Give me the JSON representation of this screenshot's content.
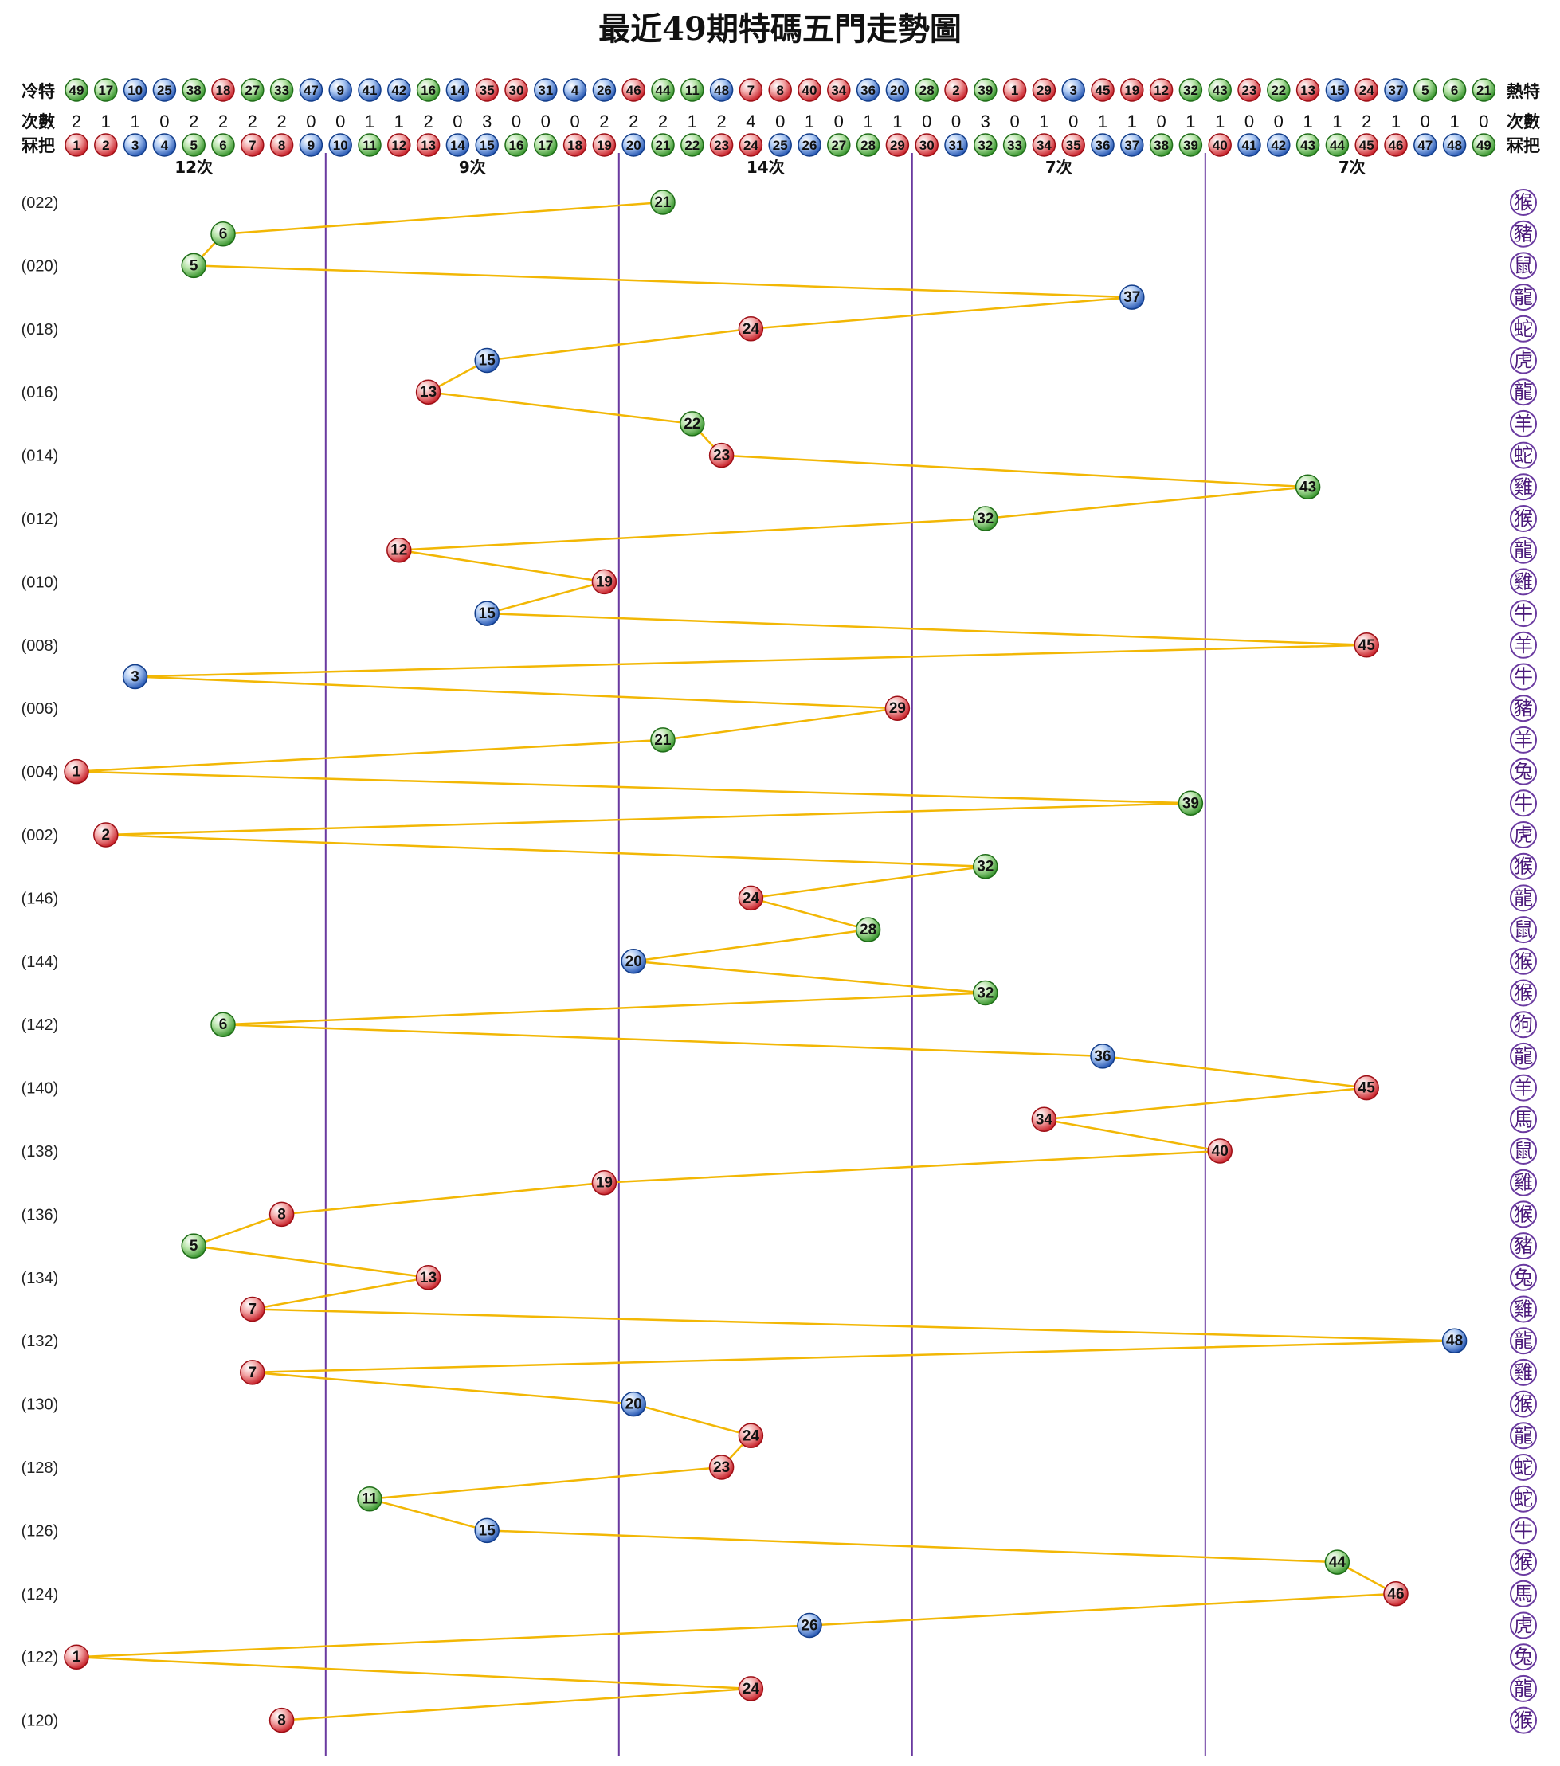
{
  "chart_data": {
    "type": "line",
    "title": "最近49期特碼五門走勢圖",
    "header": {
      "cold_label": "冷特",
      "hot_label": "熱特",
      "count_label": "次數",
      "group_label": "冧把"
    },
    "hot_cold_order": [
      49,
      17,
      10,
      25,
      38,
      18,
      27,
      33,
      47,
      9,
      41,
      42,
      16,
      14,
      35,
      30,
      31,
      4,
      26,
      46,
      44,
      11,
      48,
      7,
      8,
      40,
      34,
      36,
      20,
      28,
      2,
      39,
      1,
      29,
      3,
      45,
      19,
      12,
      32,
      43,
      23,
      22,
      13,
      15,
      24,
      37,
      5,
      6,
      21
    ],
    "counts": [
      2,
      1,
      1,
      0,
      2,
      2,
      2,
      2,
      0,
      0,
      1,
      1,
      2,
      0,
      3,
      0,
      0,
      0,
      2,
      2,
      2,
      1,
      2,
      4,
      0,
      1,
      0,
      1,
      1,
      0,
      0,
      3,
      0,
      1,
      0,
      1,
      1,
      0,
      1,
      1,
      0,
      0,
      1,
      1,
      2,
      1,
      0,
      1,
      0
    ],
    "numbers": [
      1,
      2,
      3,
      4,
      5,
      6,
      7,
      8,
      9,
      10,
      11,
      12,
      13,
      14,
      15,
      16,
      17,
      18,
      19,
      20,
      21,
      22,
      23,
      24,
      25,
      26,
      27,
      28,
      29,
      30,
      31,
      32,
      33,
      34,
      35,
      36,
      37,
      38,
      39,
      40,
      41,
      42,
      43,
      44,
      45,
      46,
      47,
      48,
      49
    ],
    "segment_counts": [
      "12次",
      "9次",
      "14次",
      "7次",
      "7次"
    ],
    "row_labels": [
      "(022)",
      "(020)",
      "(018)",
      "(016)",
      "(014)",
      "(012)",
      "(010)",
      "(008)",
      "(006)",
      "(004)",
      "(002)",
      "(146)",
      "(144)",
      "(142)",
      "(140)",
      "(138)",
      "(136)",
      "(134)",
      "(132)",
      "(130)",
      "(128)",
      "(126)",
      "(124)",
      "(122)",
      "(120)"
    ],
    "draws": [
      21,
      6,
      5,
      37,
      24,
      15,
      13,
      22,
      23,
      43,
      32,
      12,
      19,
      15,
      45,
      3,
      29,
      21,
      1,
      39,
      2,
      32,
      24,
      28,
      20,
      32,
      6,
      36,
      45,
      34,
      40,
      19,
      8,
      5,
      13,
      7,
      48,
      7,
      20,
      24,
      23,
      11,
      15,
      44,
      46,
      26,
      1,
      24,
      8
    ],
    "zodiacs": [
      "猴",
      "豬",
      "鼠",
      "龍",
      "蛇",
      "虎",
      "龍",
      "羊",
      "蛇",
      "雞",
      "猴",
      "龍",
      "雞",
      "牛",
      "羊",
      "牛",
      "豬",
      "羊",
      "兔",
      "牛",
      "虎",
      "猴",
      "龍",
      "鼠",
      "猴",
      "猴",
      "狗",
      "龍",
      "羊",
      "馬",
      "鼠",
      "雞",
      "猴",
      "豬",
      "兔",
      "雞",
      "龍",
      "雞",
      "猴",
      "龍",
      "蛇",
      "蛇",
      "牛",
      "猴",
      "馬",
      "虎",
      "兔",
      "龍",
      "猴"
    ],
    "colors": {
      "red": "#d8262e",
      "blue": "#1f5fbf",
      "green": "#34a12a",
      "line": "#f2b705",
      "divider": "#6a3aa0"
    },
    "red_numbers": [
      1,
      2,
      7,
      8,
      12,
      13,
      18,
      19,
      23,
      24,
      29,
      30,
      34,
      35,
      40,
      45,
      46
    ],
    "blue_numbers": [
      3,
      4,
      9,
      10,
      14,
      15,
      20,
      25,
      26,
      31,
      36,
      37,
      41,
      42,
      47,
      48
    ],
    "green_numbers": [
      5,
      6,
      11,
      16,
      17,
      21,
      22,
      27,
      28,
      32,
      33,
      38,
      39,
      43,
      44,
      49
    ]
  }
}
